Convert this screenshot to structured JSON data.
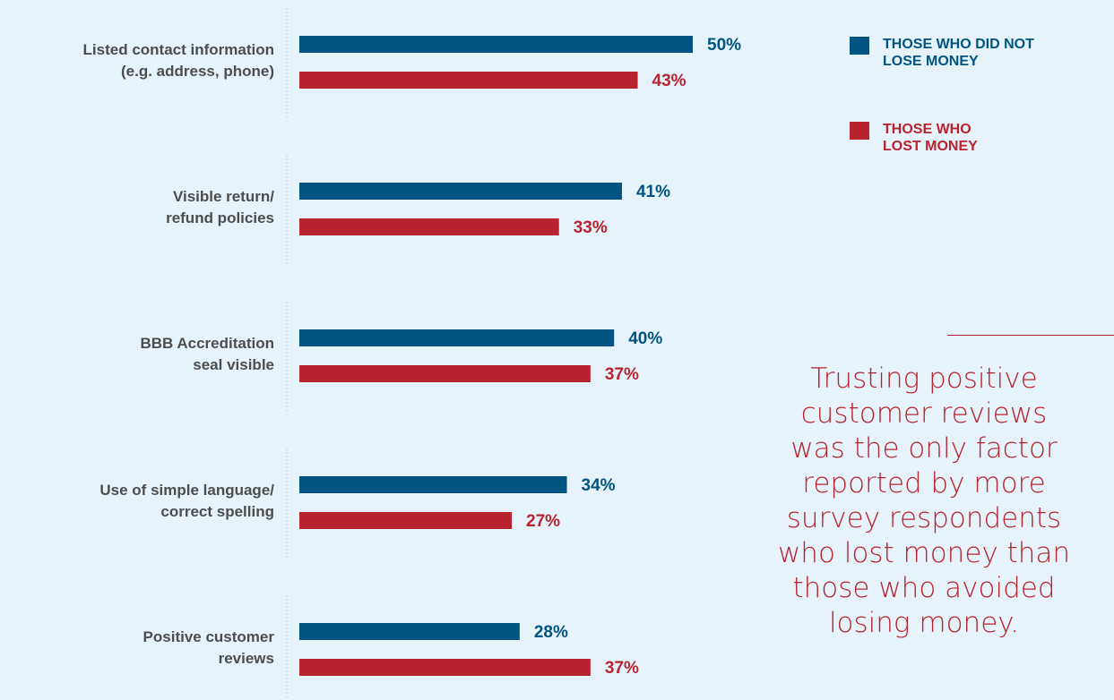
{
  "chart_data": {
    "type": "bar",
    "orientation": "horizontal",
    "categories": [
      [
        "Listed contact information",
        "(e.g. address, phone)"
      ],
      [
        "Visible return/",
        "refund policies"
      ],
      [
        "BBB Accreditation",
        "seal visible"
      ],
      [
        "Use of simple language/",
        "correct spelling"
      ],
      [
        "Positive customer",
        "reviews"
      ]
    ],
    "series": [
      {
        "name": "THOSE WHO DID NOT LOSE MONEY",
        "legend_lines": [
          "THOSE WHO DID NOT",
          "LOSE MONEY"
        ],
        "color": "#005482",
        "values": [
          50,
          41,
          40,
          34,
          28
        ]
      },
      {
        "name": "THOSE WHO LOST MONEY",
        "legend_lines": [
          "THOSE WHO",
          "LOST MONEY"
        ],
        "color": "#b8232f",
        "values": [
          43,
          33,
          37,
          27,
          37
        ]
      }
    ],
    "value_suffix": "%",
    "xlim": [
      0,
      50
    ],
    "grid": false,
    "legend_position": "top-right",
    "title": "",
    "xlabel": "",
    "ylabel": ""
  },
  "annotation": {
    "lines": [
      "Trusting positive",
      "customer reviews",
      "was the only factor",
      "reported by more",
      "survey respondents",
      "who lost money than",
      "those who avoided",
      "losing money."
    ]
  }
}
